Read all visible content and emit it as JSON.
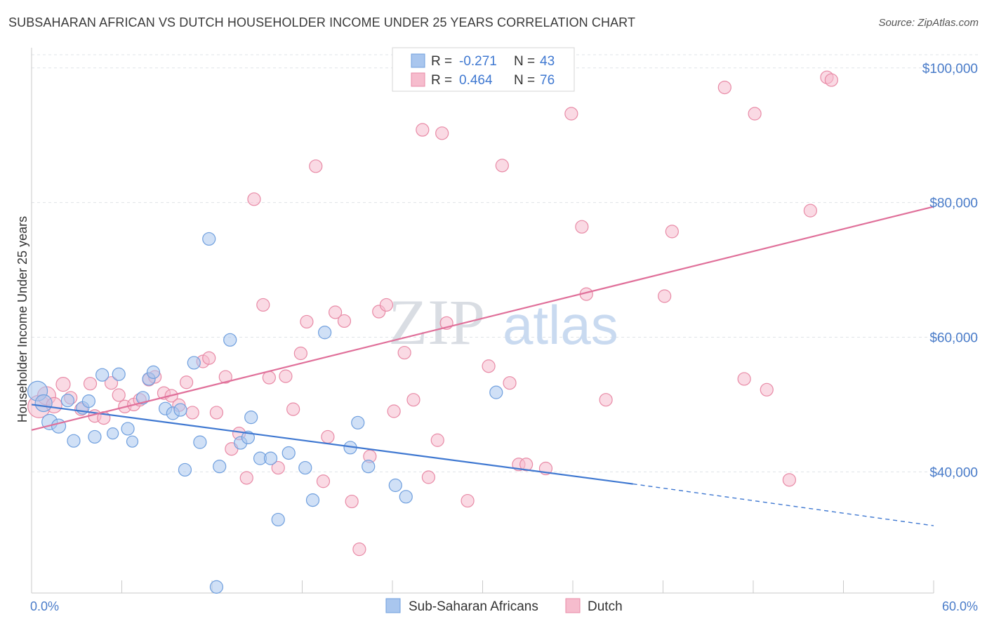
{
  "header": {
    "title": "SUBSAHARAN AFRICAN VS DUTCH HOUSEHOLDER INCOME UNDER 25 YEARS CORRELATION CHART",
    "source": "Source: ZipAtlas.com"
  },
  "watermark": {
    "zip": "ZIP",
    "atlas": "atlas"
  },
  "legend": {
    "r_label": "R =",
    "n_label": "N =",
    "rows": [
      {
        "r": "-0.271",
        "n": "43",
        "color": "#a9c6ee",
        "border": "#6f9fde"
      },
      {
        "r": "0.464",
        "n": "76",
        "color": "#f6bccd",
        "border": "#e88aa6"
      }
    ]
  },
  "bottom_legend": [
    {
      "label": "Sub-Saharan Africans",
      "color": "#a9c6ee",
      "border": "#6f9fde"
    },
    {
      "label": "Dutch",
      "color": "#f6bccd",
      "border": "#e88aa6"
    }
  ],
  "chart_data": {
    "type": "scatter",
    "title": "SUBSAHARAN AFRICAN VS DUTCH HOUSEHOLDER INCOME UNDER 25 YEARS CORRELATION CHART",
    "xlabel": "",
    "ylabel": "Householder Income Under 25 years",
    "xlim": [
      0,
      60
    ],
    "ylim": [
      22000,
      103000
    ],
    "x_tick_labels": [
      "0.0%",
      "60.0%"
    ],
    "y_ticks": [
      40000,
      60000,
      80000,
      100000
    ],
    "y_tick_labels": [
      "$40,000",
      "$60,000",
      "$80,000",
      "$100,000"
    ],
    "grid": true,
    "colors": {
      "blue": "#3f78d1",
      "pink": "#e0709a"
    },
    "series": [
      {
        "name": "Sub-Saharan Africans",
        "color": "#a9c6ee",
        "stroke": "#6f9fde",
        "points": [
          [
            0.4,
            52000,
            14
          ],
          [
            0.8,
            50200,
            12
          ],
          [
            1.2,
            47400,
            11
          ],
          [
            1.8,
            46800,
            10
          ],
          [
            2.4,
            50600,
            9
          ],
          [
            3.4,
            49500,
            9
          ],
          [
            2.8,
            44600,
            9
          ],
          [
            3.8,
            50500,
            9
          ],
          [
            4.2,
            45200,
            9
          ],
          [
            4.7,
            54400,
            9
          ],
          [
            5.4,
            45700,
            8
          ],
          [
            5.8,
            54500,
            9
          ],
          [
            6.4,
            46400,
            9
          ],
          [
            6.7,
            44500,
            8
          ],
          [
            7.4,
            51000,
            9
          ],
          [
            7.8,
            53800,
            9
          ],
          [
            8.1,
            54800,
            9
          ],
          [
            8.9,
            49400,
            9
          ],
          [
            9.4,
            48700,
            9
          ],
          [
            9.9,
            49200,
            9
          ],
          [
            10.2,
            40300,
            9
          ],
          [
            10.8,
            56200,
            9
          ],
          [
            11.2,
            44400,
            9
          ],
          [
            11.8,
            74600,
            9
          ],
          [
            12.5,
            40800,
            9
          ],
          [
            13.2,
            59600,
            9
          ],
          [
            13.9,
            44300,
            9
          ],
          [
            14.4,
            45100,
            9
          ],
          [
            14.6,
            48100,
            9
          ],
          [
            15.2,
            42000,
            9
          ],
          [
            15.9,
            42000,
            9
          ],
          [
            16.4,
            32900,
            9
          ],
          [
            17.1,
            42800,
            9
          ],
          [
            18.2,
            40600,
            9
          ],
          [
            18.7,
            35800,
            9
          ],
          [
            19.5,
            60700,
            9
          ],
          [
            21.2,
            43600,
            9
          ],
          [
            21.7,
            47300,
            9
          ],
          [
            22.4,
            40800,
            9
          ],
          [
            24.2,
            38000,
            9
          ],
          [
            24.9,
            36300,
            9
          ],
          [
            30.9,
            51800,
            9
          ],
          [
            12.3,
            22900,
            9
          ]
        ]
      },
      {
        "name": "Dutch",
        "color": "#f6bccd",
        "stroke": "#e88aa6",
        "points": [
          [
            0.5,
            49700,
            16
          ],
          [
            1.0,
            51300,
            13
          ],
          [
            1.5,
            49900,
            11
          ],
          [
            2.1,
            53000,
            10
          ],
          [
            2.6,
            51000,
            9
          ],
          [
            3.3,
            49300,
            9
          ],
          [
            3.9,
            53100,
            9
          ],
          [
            4.2,
            48300,
            9
          ],
          [
            4.8,
            48000,
            9
          ],
          [
            5.3,
            53200,
            9
          ],
          [
            5.8,
            51400,
            9
          ],
          [
            6.2,
            49700,
            9
          ],
          [
            6.8,
            50000,
            9
          ],
          [
            7.2,
            50700,
            9
          ],
          [
            7.8,
            53700,
            9
          ],
          [
            8.2,
            54100,
            9
          ],
          [
            8.8,
            51700,
            9
          ],
          [
            9.3,
            51300,
            9
          ],
          [
            9.8,
            49900,
            9
          ],
          [
            10.3,
            53300,
            9
          ],
          [
            10.7,
            48800,
            9
          ],
          [
            11.4,
            56400,
            9
          ],
          [
            11.8,
            56900,
            9
          ],
          [
            12.3,
            48800,
            9
          ],
          [
            12.9,
            54100,
            9
          ],
          [
            13.3,
            43400,
            9
          ],
          [
            13.8,
            45700,
            9
          ],
          [
            14.3,
            39100,
            9
          ],
          [
            14.8,
            80500,
            9
          ],
          [
            15.4,
            64800,
            9
          ],
          [
            15.8,
            54000,
            9
          ],
          [
            16.4,
            40600,
            9
          ],
          [
            16.9,
            54200,
            9
          ],
          [
            17.4,
            49300,
            9
          ],
          [
            17.9,
            57600,
            9
          ],
          [
            18.3,
            62300,
            9
          ],
          [
            18.9,
            85400,
            9
          ],
          [
            19.4,
            38600,
            9
          ],
          [
            19.7,
            45200,
            9
          ],
          [
            20.2,
            63700,
            9
          ],
          [
            20.8,
            62400,
            9
          ],
          [
            21.3,
            35600,
            9
          ],
          [
            21.8,
            28500,
            9
          ],
          [
            22.5,
            42300,
            9
          ],
          [
            23.1,
            63800,
            9
          ],
          [
            23.6,
            64800,
            9
          ],
          [
            24.1,
            49000,
            9
          ],
          [
            24.8,
            57700,
            9
          ],
          [
            25.4,
            50700,
            9
          ],
          [
            26.0,
            90800,
            9
          ],
          [
            26.4,
            39200,
            9
          ],
          [
            27.0,
            44700,
            9
          ],
          [
            27.3,
            90300,
            9
          ],
          [
            27.6,
            62100,
            9
          ],
          [
            28.3,
            99700,
            9
          ],
          [
            29.0,
            35700,
            9
          ],
          [
            30.4,
            55700,
            9
          ],
          [
            31.3,
            85500,
            9
          ],
          [
            31.8,
            53200,
            9
          ],
          [
            32.4,
            41100,
            9
          ],
          [
            32.9,
            41100,
            9
          ],
          [
            35.9,
            93200,
            9
          ],
          [
            36.6,
            76400,
            9
          ],
          [
            36.9,
            66400,
            9
          ],
          [
            38.2,
            50700,
            9
          ],
          [
            42.1,
            66100,
            9
          ],
          [
            42.6,
            75700,
            9
          ],
          [
            46.1,
            97100,
            9
          ],
          [
            47.4,
            53800,
            9
          ],
          [
            48.1,
            93200,
            9
          ],
          [
            48.9,
            52200,
            9
          ],
          [
            50.4,
            38800,
            9
          ],
          [
            51.8,
            78800,
            9
          ],
          [
            52.9,
            98600,
            9
          ],
          [
            53.2,
            98200,
            9
          ],
          [
            34.2,
            40500,
            9
          ]
        ]
      }
    ],
    "trendlines": [
      {
        "series": "Sub-Saharan Africans",
        "color": "#3f78d1",
        "solid": [
          [
            0,
            50000
          ],
          [
            40,
            38200
          ]
        ],
        "dashed": [
          [
            40,
            38200
          ],
          [
            60,
            32000
          ]
        ]
      },
      {
        "series": "Dutch",
        "color": "#e0709a",
        "solid": [
          [
            0,
            46200
          ],
          [
            60,
            79400
          ]
        ]
      }
    ],
    "legend_position": "top-center"
  }
}
